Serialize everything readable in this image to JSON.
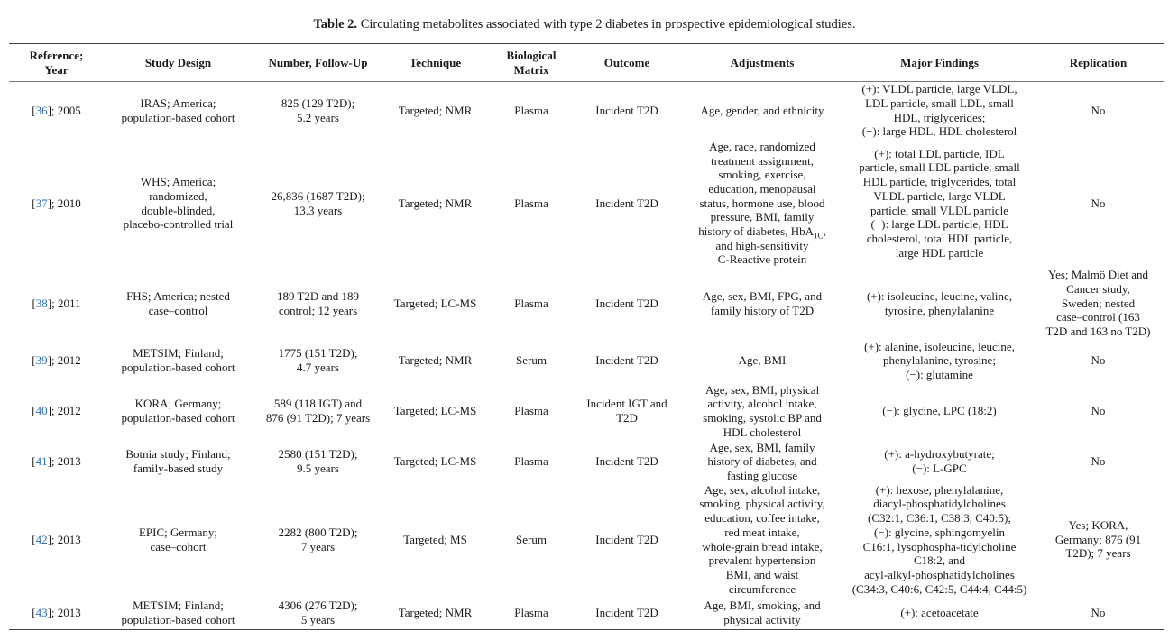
{
  "caption": {
    "label": "Table 2.",
    "text": " Circulating metabolites associated with type 2 diabetes in prospective epidemiological studies."
  },
  "headers": [
    "Reference;\nYear",
    "Study Design",
    "Number, Follow-Up",
    "Technique",
    "Biological\nMatrix",
    "Outcome",
    "Adjustments",
    "Major Findings",
    "Replication"
  ],
  "rows": [
    {
      "ref": "36",
      "year": "; 2005",
      "design": "IRAS; America;\npopulation-based cohort",
      "number": "825 (129 T2D);\n5.2 years",
      "technique": "Targeted; NMR",
      "matrix": "Plasma",
      "outcome": "Incident T2D",
      "adjustments": "Age, gender, and ethnicity",
      "findings": "(+): VLDL particle, large VLDL,\nLDL particle, small LDL, small\nHDL, triglycerides;\n(−): large HDL, HDL cholesterol",
      "replication": "No"
    },
    {
      "ref": "37",
      "year": "; 2010",
      "design": "WHS; America;\nrandomized,\ndouble-blinded,\nplacebo-controlled trial",
      "number": "26,836 (1687 T2D);\n13.3 years",
      "technique": "Targeted; NMR",
      "matrix": "Plasma",
      "outcome": "Incident T2D",
      "adjustments": "Age, race, randomized\ntreatment assignment,\nsmoking, exercise,\neducation, menopausal\nstatus, hormone use, blood\npressure, BMI, family\nhistory of diabetes, HbA",
      "adjustments_sub": "1C",
      "adjustments_after": ",\nand high-sensitivity\nC-Reactive protein",
      "findings": "(+): total LDL particle, IDL\nparticle, small LDL particle, small\nHDL particle, triglycerides, total\nVLDL particle, large VLDL\nparticle, small VLDL particle\n(−): large LDL particle, HDL\ncholesterol, total HDL particle,\nlarge HDL particle",
      "replication": "No"
    },
    {
      "ref": "38",
      "year": "; 2011",
      "design": "FHS; America; nested\ncase–control",
      "number": "189 T2D and 189\ncontrol; 12 years",
      "technique": "Targeted; LC-MS",
      "matrix": "Plasma",
      "outcome": "Incident T2D",
      "adjustments": "Age, sex, BMI, FPG, and\nfamily history of T2D",
      "findings": "(+): isoleucine, leucine, valine,\ntyrosine, phenylalanine",
      "replication": "Yes; Malmö Diet and\nCancer study,\nSweden; nested\ncase–control (163\nT2D and 163 no T2D)"
    },
    {
      "ref": "39",
      "year": "; 2012",
      "design": "METSIM; Finland;\npopulation-based cohort",
      "number": "1775 (151 T2D);\n4.7 years",
      "technique": "Targeted; NMR",
      "matrix": "Serum",
      "outcome": "Incident T2D",
      "adjustments": "Age, BMI",
      "findings": "(+): alanine, isoleucine, leucine,\nphenylalanine, tyrosine;\n(−): glutamine",
      "replication": "No"
    },
    {
      "ref": "40",
      "year": "; 2012",
      "design": "KORA; Germany;\npopulation-based cohort",
      "number": "589 (118 IGT) and\n876 (91 T2D); 7 years",
      "technique": "Targeted; LC-MS",
      "matrix": "Plasma",
      "outcome": "Incident IGT and\nT2D",
      "adjustments": "Age, sex, BMI, physical\nactivity, alcohol intake,\nsmoking, systolic BP and\nHDL cholesterol",
      "findings": "(−): glycine, LPC (18:2)",
      "replication": "No"
    },
    {
      "ref": "41",
      "year": "; 2013",
      "design": "Botnia study; Finland;\nfamily-based study",
      "number": "2580 (151 T2D);\n9.5 years",
      "technique": "Targeted; LC-MS",
      "matrix": "Plasma",
      "outcome": "Incident T2D",
      "adjustments": "Age, sex, BMI, family\nhistory of diabetes, and\nfasting glucose",
      "findings": "(+): a-hydroxybutyrate;\n(−): L-GPC",
      "replication": "No"
    },
    {
      "ref": "42",
      "year": "; 2013",
      "design": "EPIC; Germany;\ncase–cohort",
      "number": "2282 (800 T2D);\n7 years",
      "technique": "Targeted; MS",
      "matrix": "Serum",
      "outcome": "Incident T2D",
      "adjustments": "Age, sex, alcohol intake,\nsmoking, physical activity,\neducation, coffee intake,\nred meat intake,\nwhole-grain bread intake,\nprevalent hypertension\nBMI, and waist\ncircumference",
      "findings": "(+): hexose, phenylalanine,\ndiacyl-phosphatidylcholines\n(C32:1, C36:1, C38:3, C40:5);\n(−): glycine, sphingomyelin\nC16:1, lysophospha-tidylcholine\nC18:2, and\nacyl-alkyl-phosphatidylcholines\n(C34:3, C40:6, C42:5, C44:4, C44:5)",
      "replication": "Yes; KORA,\nGermany; 876 (91\nT2D); 7 years"
    },
    {
      "ref": "43",
      "year": "; 2013",
      "design": "METSIM; Finland;\npopulation-based cohort",
      "number": "4306 (276 T2D);\n5 years",
      "technique": "Targeted; NMR",
      "matrix": "Plasma",
      "outcome": "Incident T2D",
      "adjustments": "Age, BMI, smoking, and\nphysical activity",
      "findings": "(+): acetoacetate",
      "replication": "No"
    }
  ]
}
